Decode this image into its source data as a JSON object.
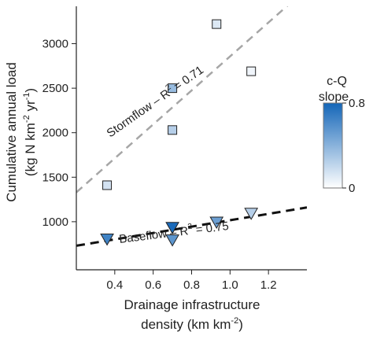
{
  "chart_data": {
    "type": "scatter",
    "xlabel_lines": [
      "Drainage infrastructure",
      "density (km km",
      "-2",
      ")"
    ],
    "ylabel_lines": [
      "Cumulative annual load",
      "(kg N km",
      "-2",
      " yr",
      "-1",
      ")"
    ],
    "xlim": [
      0.2,
      1.4
    ],
    "ylim": [
      460,
      3420
    ],
    "xticks": [
      0.4,
      0.6,
      0.8,
      1.0,
      1.2
    ],
    "xtick_labels": [
      "0.4",
      "0.6",
      "0.8",
      "1.0",
      "1.2"
    ],
    "yticks": [
      1000,
      1500,
      2000,
      2500,
      3000
    ],
    "ytick_labels": [
      "1000",
      "1500",
      "2000",
      "2500",
      "3000"
    ],
    "grid": false,
    "series": [
      {
        "name": "Stormflow",
        "marker": "square",
        "points": [
          {
            "x": 0.36,
            "y": 1410,
            "slope": 0.15
          },
          {
            "x": 0.7,
            "y": 2500,
            "slope": 0.35
          },
          {
            "x": 0.7,
            "y": 2030,
            "slope": 0.25
          },
          {
            "x": 0.93,
            "y": 3220,
            "slope": 0.12
          },
          {
            "x": 1.11,
            "y": 2690,
            "slope": 0.05
          }
        ],
        "fit": {
          "x": [
            0.2,
            1.4
          ],
          "y": [
            1330,
            3620
          ],
          "color": "#a6a6a6",
          "dash": "dashed"
        },
        "fit_label_text": "Stormflow – R",
        "fit_label_sup": "2",
        "fit_label_value": " = 0.71"
      },
      {
        "name": "Baseflow",
        "marker": "triangle-down",
        "points": [
          {
            "x": 0.36,
            "y": 800,
            "slope": 0.65
          },
          {
            "x": 0.7,
            "y": 930,
            "slope": 0.78
          },
          {
            "x": 0.7,
            "y": 790,
            "slope": 0.55
          },
          {
            "x": 0.93,
            "y": 990,
            "slope": 0.5
          },
          {
            "x": 1.11,
            "y": 1090,
            "slope": 0.25
          }
        ],
        "fit": {
          "x": [
            0.2,
            1.4
          ],
          "y": [
            730,
            1160
          ],
          "color": "#111111",
          "dash": "dashed"
        },
        "fit_label_text": "Baseflow – R",
        "fit_label_sup": "2",
        "fit_label_value": " = 0.75"
      }
    ],
    "colorbar": {
      "title_lines": [
        "c-Q",
        "slope"
      ],
      "min": 0,
      "max": 0.8,
      "min_label": "0",
      "max_label": "0.8",
      "color_low": "#ffffff",
      "color_high": "#1466b8"
    }
  }
}
